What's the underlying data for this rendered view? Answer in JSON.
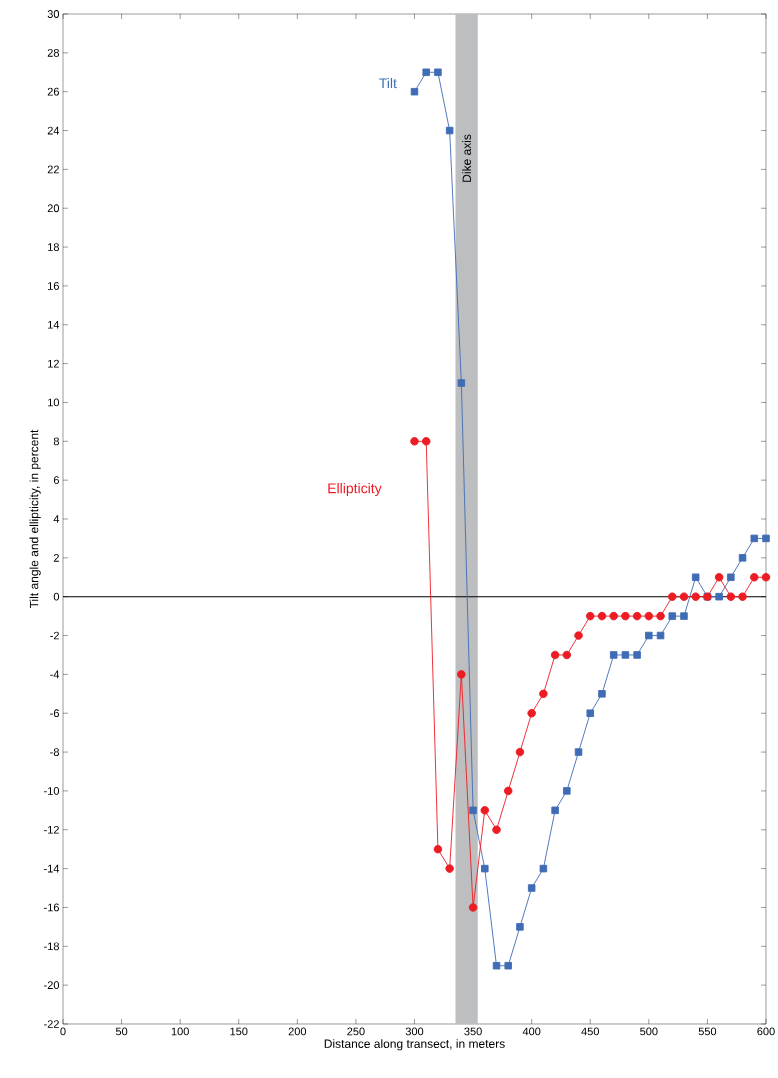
{
  "chart_data": {
    "type": "line",
    "xlabel": "Distance along transect, in meters",
    "ylabel": "Tilt angle and ellipticity, in percent",
    "x": [
      300,
      310,
      320,
      330,
      340,
      350,
      360,
      370,
      380,
      390,
      400,
      410,
      420,
      430,
      440,
      450,
      460,
      470,
      480,
      490,
      500,
      510,
      520,
      530,
      540,
      550,
      560,
      570,
      580,
      590,
      600
    ],
    "series": [
      {
        "name": "Tilt",
        "color": "#3f6cb5",
        "marker": "square",
        "values": [
          26,
          27,
          27,
          24,
          11,
          -11,
          -14,
          -19,
          -19,
          -17,
          -15,
          -14,
          -11,
          -10,
          -8,
          -6,
          -5,
          -3,
          -3,
          -3,
          -2,
          -2,
          -1,
          -1,
          1,
          0,
          0,
          1,
          2,
          3,
          3
        ]
      },
      {
        "name": "Ellipticity",
        "color": "#ec1c24",
        "marker": "circle",
        "values": [
          8,
          8,
          -13,
          -14,
          -4,
          -16,
          -11,
          -12,
          -10,
          -8,
          -6,
          -5,
          -3,
          -3,
          -2,
          -1,
          -1,
          -1,
          -1,
          -1,
          -1,
          -1,
          0,
          0,
          0,
          0,
          1,
          0,
          0,
          1,
          1
        ]
      }
    ],
    "xlim": [
      0,
      600
    ],
    "xticks": [
      0,
      50,
      100,
      150,
      200,
      250,
      300,
      350,
      400,
      450,
      500,
      550,
      600
    ],
    "ylim": [
      -22,
      30
    ],
    "yticks": [
      -22,
      -20,
      -18,
      -16,
      -14,
      -12,
      -10,
      -8,
      -6,
      -4,
      -2,
      0,
      2,
      4,
      6,
      8,
      10,
      12,
      14,
      16,
      18,
      20,
      22,
      24,
      26,
      28,
      30
    ],
    "ref_lines": [
      {
        "axis": "y",
        "value": 0,
        "color": "#000000"
      }
    ],
    "bands": [
      {
        "axis": "x",
        "from": 335,
        "to": 354,
        "label": "Dike axis",
        "color": "#bcbec0"
      }
    ],
    "grid": false,
    "line_style": "solid"
  }
}
